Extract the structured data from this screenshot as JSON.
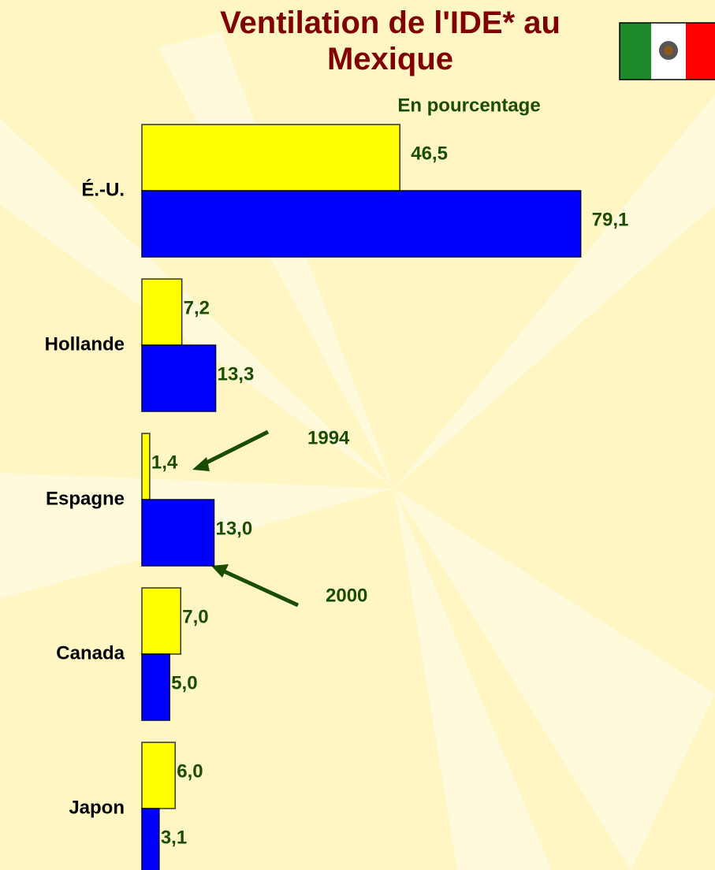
{
  "chart_data": {
    "type": "bar",
    "orientation": "horizontal",
    "title": "Ventilation de l'IDE* au Mexique",
    "subtitle": "En pourcentage",
    "categories": [
      "É.-U.",
      "Hollande",
      "Espagne",
      "Canada",
      "Japon"
    ],
    "series": [
      {
        "name": "1994",
        "color": "#ffff00",
        "values": [
          46.5,
          7.2,
          1.4,
          7.0,
          6.0
        ],
        "value_labels": [
          "46,5",
          "7,2",
          "1,4",
          "7,0",
          "6,0"
        ]
      },
      {
        "name": "2000",
        "color": "#0000ff",
        "values": [
          79.1,
          13.3,
          13.0,
          5.0,
          3.1
        ],
        "value_labels": [
          "79,1",
          "13,3",
          "13,0",
          "5,0",
          "3,1"
        ]
      }
    ],
    "xlim": [
      0,
      80
    ]
  }
}
